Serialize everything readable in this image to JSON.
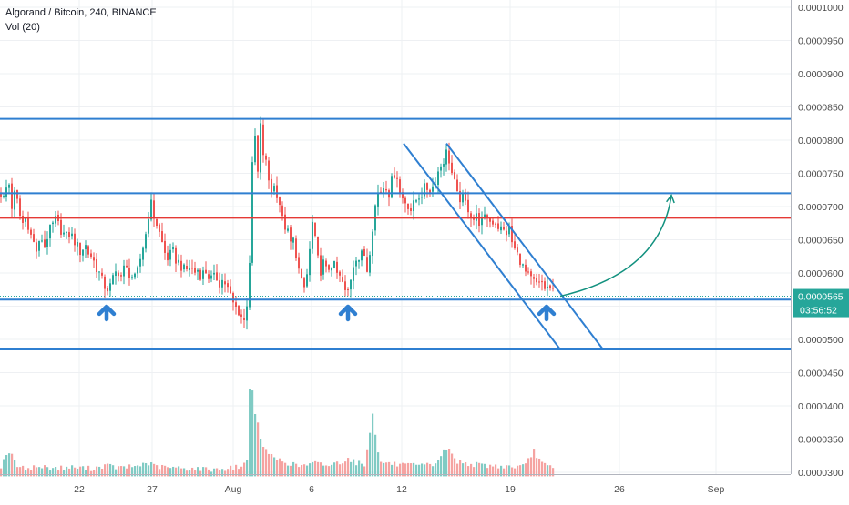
{
  "header": {
    "symbol_line": "Algorand / Bitcoin, 240, BINANCE",
    "volume_line": "Vol (20)"
  },
  "colors": {
    "up": "#26a69a",
    "down": "#ef5350",
    "vol_up": "#80cbc4",
    "vol_down": "#f5a3a1",
    "channel": "#2f7fd1",
    "resistance": "#e53935",
    "projection": "#12917f",
    "price_tag": "#26a69a",
    "grid": "#eef0f3",
    "axis_text": "#4a4a4a"
  },
  "chart_data": {
    "type": "candlestick",
    "title": "Algorand / Bitcoin, 240, BINANCE",
    "subtitle": "Vol (20)",
    "xlabel": "",
    "ylabel": "",
    "ylim": [
      2.925e-05,
      0.0001015
    ],
    "x_ticks": [
      "22",
      "27",
      "Aug",
      "6",
      "12",
      "19",
      "26",
      "Sep"
    ],
    "y_ticks": [
      "0.0001000",
      "0.0000950",
      "0.0000900",
      "0.0000850",
      "0.0000800",
      "0.0000750",
      "0.0000700",
      "0.0000650",
      "0.0000600",
      "0.0000550",
      "0.0000500",
      "0.0000450",
      "0.0000400",
      "0.0000350",
      "0.0000300"
    ],
    "last_price": "0.0000565",
    "countdown": "03:56:52",
    "grid": true,
    "series": {
      "price_path": [
        [
          0,
          72.0
        ],
        [
          4,
          71.0
        ],
        [
          8,
          74.5
        ],
        [
          12,
          70.0
        ],
        [
          16,
          72.5
        ],
        [
          20,
          69.0
        ],
        [
          24,
          67.5
        ],
        [
          28,
          68.5
        ],
        [
          32,
          66.0
        ],
        [
          36,
          64.5
        ],
        [
          40,
          63.0
        ],
        [
          44,
          65.5
        ],
        [
          48,
          64.0
        ],
        [
          52,
          66.0
        ],
        [
          56,
          67.0
        ],
        [
          60,
          68.0
        ],
        [
          64,
          67.0
        ],
        [
          68,
          66.0
        ],
        [
          72,
          65.5
        ],
        [
          76,
          66.0
        ],
        [
          80,
          65.0
        ],
        [
          84,
          64.0
        ],
        [
          88,
          63.0
        ],
        [
          92,
          64.5
        ],
        [
          96,
          63.0
        ],
        [
          100,
          62.5
        ],
        [
          104,
          61.0
        ],
        [
          108,
          60.0
        ],
        [
          112,
          58.5
        ],
        [
          116,
          57.5
        ],
        [
          120,
          58.0
        ],
        [
          124,
          59.5
        ],
        [
          128,
          60.5
        ],
        [
          132,
          59.5
        ],
        [
          136,
          61.0
        ],
        [
          140,
          60.0
        ],
        [
          144,
          59.5
        ],
        [
          148,
          59.0
        ],
        [
          152,
          61.5
        ],
        [
          156,
          64.0
        ],
        [
          160,
          66.5
        ],
        [
          164,
          71.0
        ],
        [
          168,
          68.5
        ],
        [
          172,
          67.0
        ],
        [
          176,
          65.0
        ],
        [
          180,
          63.0
        ],
        [
          184,
          62.0
        ],
        [
          188,
          63.5
        ],
        [
          192,
          62.0
        ],
        [
          196,
          61.5
        ],
        [
          200,
          60.5
        ],
        [
          204,
          60.5
        ],
        [
          208,
          61.0
        ],
        [
          212,
          60.0
        ],
        [
          216,
          60.5
        ],
        [
          220,
          59.5
        ],
        [
          224,
          60.5
        ],
        [
          228,
          59.5
        ],
        [
          232,
          59.0
        ],
        [
          236,
          59.5
        ],
        [
          240,
          58.5
        ],
        [
          244,
          59.0
        ],
        [
          248,
          58.0
        ],
        [
          252,
          56.5
        ],
        [
          256,
          55.0
        ],
        [
          260,
          54.5
        ],
        [
          264,
          53.5
        ],
        [
          268,
          52.5
        ],
        [
          270,
          55.5
        ],
        [
          274,
          64.0
        ],
        [
          276,
          76.0
        ],
        [
          279,
          80.5
        ],
        [
          282,
          75.0
        ],
        [
          285,
          82.0
        ],
        [
          288,
          78.0
        ],
        [
          291,
          76.5
        ],
        [
          294,
          74.0
        ],
        [
          297,
          72.5
        ],
        [
          300,
          73.0
        ],
        [
          303,
          72.0
        ],
        [
          306,
          70.5
        ],
        [
          309,
          68.0
        ],
        [
          312,
          67.0
        ],
        [
          315,
          66.0
        ],
        [
          318,
          64.5
        ],
        [
          322,
          65.0
        ],
        [
          326,
          61.0
        ],
        [
          330,
          58.5
        ],
        [
          334,
          57.5
        ],
        [
          338,
          62.0
        ],
        [
          342,
          67.5
        ],
        [
          346,
          64.0
        ],
        [
          350,
          60.0
        ],
        [
          354,
          61.5
        ],
        [
          358,
          60.0
        ],
        [
          362,
          61.5
        ],
        [
          366,
          61.0
        ],
        [
          370,
          59.5
        ],
        [
          374,
          59.0
        ],
        [
          378,
          57.0
        ],
        [
          382,
          57.5
        ],
        [
          386,
          61.0
        ],
        [
          390,
          62.5
        ],
        [
          394,
          62.0
        ],
        [
          398,
          63.5
        ],
        [
          402,
          60.5
        ],
        [
          406,
          64.5
        ],
        [
          410,
          69.5
        ],
        [
          414,
          72.0
        ],
        [
          418,
          72.5
        ],
        [
          422,
          73.5
        ],
        [
          426,
          72.0
        ],
        [
          430,
          74.5
        ],
        [
          434,
          75.5
        ],
        [
          438,
          72.0
        ],
        [
          442,
          71.0
        ],
        [
          446,
          70.5
        ],
        [
          450,
          69.5
        ],
        [
          454,
          70.5
        ],
        [
          458,
          71.5
        ],
        [
          462,
          72.0
        ],
        [
          466,
          73.0
        ],
        [
          470,
          72.5
        ],
        [
          474,
          73.0
        ],
        [
          478,
          74.5
        ],
        [
          482,
          76.0
        ],
        [
          486,
          77.0
        ],
        [
          490,
          78.5
        ],
        [
          494,
          75.5
        ],
        [
          498,
          73.5
        ],
        [
          502,
          71.0
        ],
        [
          506,
          71.5
        ],
        [
          510,
          70.5
        ],
        [
          514,
          69.5
        ],
        [
          518,
          68.0
        ],
        [
          522,
          68.5
        ],
        [
          526,
          67.5
        ],
        [
          530,
          68.0
        ],
        [
          534,
          68.5
        ],
        [
          538,
          67.5
        ],
        [
          542,
          68.0
        ],
        [
          546,
          67.0
        ],
        [
          550,
          66.5
        ],
        [
          554,
          66.0
        ],
        [
          558,
          66.5
        ],
        [
          562,
          64.0
        ],
        [
          566,
          63.0
        ],
        [
          570,
          62.0
        ],
        [
          574,
          60.5
        ],
        [
          578,
          59.5
        ],
        [
          582,
          59.0
        ],
        [
          586,
          58.5
        ],
        [
          590,
          58.0
        ],
        [
          594,
          58.5
        ],
        [
          598,
          57.5
        ],
        [
          602,
          58.0
        ],
        [
          606,
          57.0
        ]
      ],
      "volume_path": [
        [
          0,
          30.8
        ],
        [
          8,
          33.2
        ],
        [
          20,
          30.4
        ],
        [
          40,
          30.7
        ],
        [
          60,
          30.5
        ],
        [
          80,
          30.6
        ],
        [
          100,
          30.4
        ],
        [
          115,
          30.9
        ],
        [
          130,
          30.5
        ],
        [
          150,
          30.8
        ],
        [
          160,
          31.3
        ],
        [
          170,
          30.7
        ],
        [
          190,
          30.5
        ],
        [
          210,
          30.4
        ],
        [
          230,
          30.3
        ],
        [
          250,
          30.4
        ],
        [
          265,
          30.8
        ],
        [
          270,
          31.5
        ],
        [
          274,
          46.5
        ],
        [
          276,
          42.0
        ],
        [
          279,
          39.0
        ],
        [
          282,
          37.0
        ],
        [
          285,
          34.5
        ],
        [
          288,
          33.5
        ],
        [
          291,
          33.5
        ],
        [
          294,
          32.5
        ],
        [
          300,
          32.0
        ],
        [
          310,
          31.5
        ],
        [
          320,
          31.0
        ],
        [
          330,
          30.8
        ],
        [
          345,
          31.2
        ],
        [
          360,
          30.9
        ],
        [
          375,
          31.5
        ],
        [
          380,
          32.0
        ],
        [
          390,
          31.3
        ],
        [
          400,
          31.0
        ],
        [
          408,
          39.0
        ],
        [
          415,
          31.5
        ],
        [
          425,
          31.2
        ],
        [
          440,
          30.9
        ],
        [
          460,
          30.8
        ],
        [
          475,
          31.0
        ],
        [
          490,
          33.5
        ],
        [
          500,
          31.5
        ],
        [
          520,
          31.0
        ],
        [
          540,
          30.8
        ],
        [
          560,
          30.7
        ],
        [
          575,
          30.7
        ],
        [
          585,
          33.0
        ],
        [
          595,
          31.0
        ],
        [
          606,
          30.4
        ]
      ]
    },
    "annotations": {
      "horizontal_lines": [
        {
          "style": "blue",
          "value": 83.2
        },
        {
          "style": "blue",
          "value": 72.0
        },
        {
          "style": "red",
          "value": 68.3
        },
        {
          "style": "blue",
          "value": 56.0
        },
        {
          "style": "blue",
          "value": 48.5
        }
      ],
      "channel_lines": [
        {
          "from": [
            443,
            79.5
          ],
          "to": [
            615,
            48.5
          ]
        },
        {
          "from": [
            490,
            79.5
          ],
          "to": [
            662,
            48.5
          ]
        }
      ],
      "arrows_up": [
        {
          "x": 117,
          "value": 54.8
        },
        {
          "x": 382,
          "value": 54.8
        },
        {
          "x": 600,
          "value": 54.8
        }
      ],
      "projection_curve": {
        "from": [
          615,
          56.5
        ],
        "control": [
          725,
          60.0
        ],
        "to": [
          737,
          71.7
        ]
      }
    }
  }
}
